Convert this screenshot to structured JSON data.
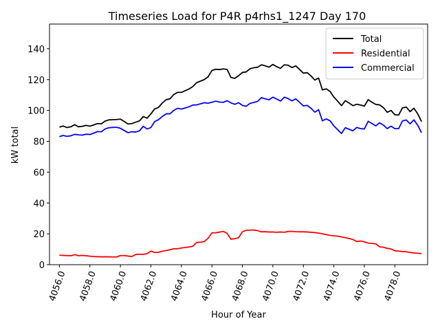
{
  "chart_data": {
    "type": "line",
    "title": "Timeseries Load for P4R p4rhs1_1247  Day 170",
    "xlabel": "Hour of Year",
    "ylabel": "kW total",
    "xlim": [
      4055.35,
      4080.15
    ],
    "ylim": [
      0,
      156
    ],
    "xticks": [
      4056,
      4058,
      4060,
      4062,
      4064,
      4066,
      4068,
      4070,
      4072,
      4074,
      4076,
      4078
    ],
    "xtick_labels": [
      "4056.0",
      "4058.0",
      "4060.0",
      "4062.0",
      "4064.0",
      "4066.0",
      "4068.0",
      "4070.0",
      "4072.0",
      "4074.0",
      "4076.0",
      "4078.0"
    ],
    "yticks": [
      0,
      20,
      40,
      60,
      80,
      100,
      120,
      140
    ],
    "ytick_labels": [
      "0",
      "20",
      "40",
      "60",
      "80",
      "100",
      "120",
      "140"
    ],
    "grid": false,
    "legend_position": "top-right",
    "x_start": 4056,
    "x_step": 0.25,
    "series": [
      {
        "name": "Total",
        "color": "#000000",
        "values": [
          89.2,
          89.9,
          88.9,
          89.4,
          90.8,
          89.4,
          89.7,
          90.3,
          89.8,
          90.6,
          91.5,
          91.3,
          93.1,
          93.9,
          94.0,
          94.1,
          94.4,
          92.8,
          91.2,
          91.5,
          92.4,
          93.2,
          96.0,
          95.0,
          97.8,
          101.0,
          102.0,
          104.8,
          107.0,
          107.5,
          110.3,
          111.7,
          111.7,
          112.8,
          113.9,
          115.5,
          118.0,
          119.0,
          120.0,
          121.8,
          125.9,
          126.7,
          126.5,
          126.9,
          126.6,
          121.4,
          120.8,
          122.5,
          124.6,
          125.0,
          127.0,
          127.7,
          128.0,
          129.6,
          128.9,
          128.1,
          129.8,
          128.4,
          127.3,
          129.6,
          129.3,
          127.8,
          128.9,
          126.6,
          124.2,
          124.5,
          122.4,
          119.7,
          121.0,
          113.3,
          114.0,
          112.3,
          108.7,
          106.0,
          103.1,
          106.3,
          104.8,
          103.1,
          104.0,
          103.5,
          102.8,
          107.0,
          105.3,
          103.9,
          103.6,
          101.8,
          98.8,
          100.0,
          97.2,
          97.0,
          101.7,
          102.2,
          99.2,
          101.5,
          97.8,
          92.8
        ]
      },
      {
        "name": "Residential",
        "color": "#ff0000",
        "values": [
          6.2,
          6.0,
          5.9,
          5.8,
          6.5,
          5.8,
          6.0,
          5.8,
          5.5,
          5.3,
          5.2,
          5.1,
          5.1,
          5.1,
          5.0,
          5.0,
          5.9,
          5.9,
          5.6,
          5.3,
          6.6,
          6.8,
          6.7,
          7.2,
          8.8,
          7.9,
          8.0,
          8.7,
          9.2,
          9.7,
          10.3,
          10.3,
          10.8,
          11.2,
          11.5,
          12.0,
          14.4,
          14.6,
          15.0,
          17.1,
          20.6,
          20.7,
          21.1,
          21.6,
          20.3,
          16.5,
          16.9,
          17.5,
          21.3,
          22.3,
          22.4,
          22.5,
          22.1,
          21.3,
          21.4,
          21.2,
          21.2,
          21.0,
          21.2,
          21.0,
          21.6,
          21.6,
          21.4,
          21.3,
          21.3,
          21.2,
          21.0,
          20.8,
          20.5,
          20.0,
          19.5,
          19.0,
          18.7,
          18.5,
          18.0,
          17.5,
          17.0,
          16.3,
          15.0,
          15.3,
          14.8,
          14.0,
          13.8,
          13.5,
          11.6,
          11.3,
          10.6,
          10.2,
          9.0,
          8.8,
          8.5,
          8.4,
          7.9,
          7.6,
          7.4,
          7.2
        ]
      },
      {
        "name": "Commercial",
        "color": "#0000ff",
        "values": [
          83.0,
          83.8,
          83.2,
          83.6,
          84.5,
          84.2,
          84.0,
          84.6,
          84.4,
          85.3,
          86.3,
          86.2,
          88.0,
          88.8,
          89.0,
          89.1,
          88.4,
          87.0,
          85.6,
          86.2,
          86.0,
          86.8,
          89.7,
          88.0,
          88.9,
          92.8,
          94.0,
          96.1,
          97.8,
          97.8,
          100.0,
          101.4,
          100.9,
          101.6,
          102.4,
          103.5,
          103.6,
          104.3,
          105.0,
          104.7,
          105.3,
          106.0,
          105.4,
          105.3,
          106.3,
          104.9,
          104.0,
          105.0,
          103.3,
          102.7,
          104.6,
          105.2,
          105.9,
          108.3,
          107.5,
          106.9,
          108.6,
          107.4,
          106.1,
          108.6,
          107.7,
          106.2,
          107.5,
          105.3,
          102.9,
          103.3,
          101.4,
          98.9,
          100.5,
          93.3,
          94.5,
          93.3,
          90.0,
          87.5,
          85.1,
          88.8,
          87.8,
          86.8,
          89.0,
          88.2,
          88.0,
          93.0,
          91.5,
          90.0,
          92.0,
          90.5,
          88.2,
          89.8,
          88.2,
          88.2,
          93.2,
          93.8,
          91.3,
          93.9,
          90.4,
          85.6
        ]
      }
    ]
  }
}
